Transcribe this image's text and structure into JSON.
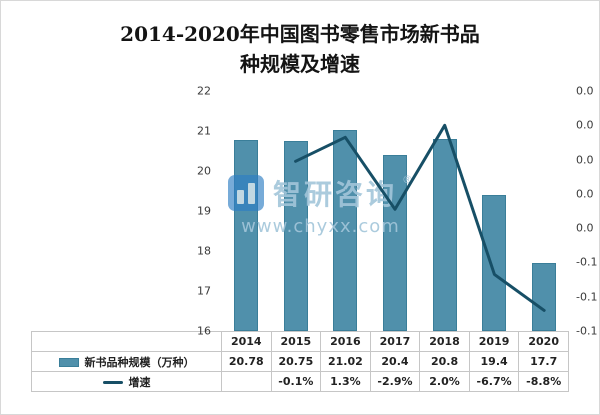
{
  "frame": {
    "title_line1": "2014-2020年中国图书零售市场新书品",
    "title_line2": "种规模及增速"
  },
  "watermark": {
    "brand": "智研咨询",
    "reg_mark": "®",
    "url": "www.chyxx.com"
  },
  "colors": {
    "bar": "#5090ab",
    "bar_edge": "#3a7e99",
    "line": "#174f66",
    "watermark": "#a3c6da",
    "border": "#c6c6c6"
  },
  "chart_data": {
    "type": "bar",
    "combo": "bar+line",
    "title": "2014-2020年中国图书零售市场新书品种规模及增速",
    "categories": [
      "2014",
      "2015",
      "2016",
      "2017",
      "2018",
      "2019",
      "2020"
    ],
    "series": [
      {
        "name": "新书品种规模（万种）",
        "type": "bar",
        "axis": "left",
        "values": [
          20.78,
          20.75,
          21.02,
          20.4,
          20.8,
          19.4,
          17.7
        ],
        "labels": [
          "20.78",
          "20.75",
          "21.02",
          "20.4",
          "20.8",
          "19.4",
          "17.7"
        ]
      },
      {
        "name": "增速",
        "type": "line",
        "axis": "right",
        "values": [
          null,
          -0.1,
          1.3,
          -2.9,
          2.0,
          -6.7,
          -8.8
        ],
        "labels": [
          "",
          "-0.1%",
          "1.3%",
          "-2.9%",
          "2.0%",
          "-6.7%",
          "-8.8%"
        ]
      }
    ],
    "y_left": {
      "min": 16,
      "max": 22,
      "ticks": [
        "22",
        "21",
        "20",
        "19",
        "18",
        "17",
        "16"
      ]
    },
    "y_right": {
      "min": -10,
      "max": 4,
      "ticks": [
        "0.0",
        "0.0",
        "0.0",
        "0.0",
        "0.0",
        "-0.1",
        "-0.1",
        "-0.1"
      ]
    },
    "grid": false,
    "legend_position": "bottom-table"
  }
}
